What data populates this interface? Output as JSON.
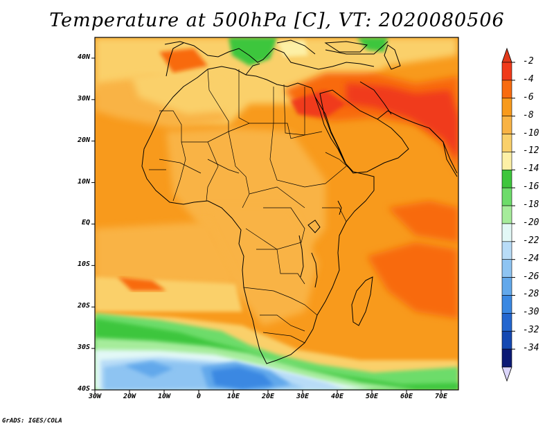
{
  "title": "Temperature at 500hPa [C], VT: 2020080506",
  "credit": "GrADS: IGES/COLA",
  "map": {
    "projection": "latlon",
    "lon_range": [
      -30,
      75
    ],
    "lat_range": [
      -40,
      45
    ],
    "lat_ticks": [
      {
        "value": 40,
        "label": "40N"
      },
      {
        "value": 30,
        "label": "30N"
      },
      {
        "value": 20,
        "label": "20N"
      },
      {
        "value": 10,
        "label": "10N"
      },
      {
        "value": 0,
        "label": "EQ"
      },
      {
        "value": -10,
        "label": "10S"
      },
      {
        "value": -20,
        "label": "20S"
      },
      {
        "value": -30,
        "label": "30S"
      },
      {
        "value": -40,
        "label": "40S"
      }
    ],
    "lon_ticks": [
      {
        "value": -30,
        "label": "30W"
      },
      {
        "value": -20,
        "label": "20W"
      },
      {
        "value": -10,
        "label": "10W"
      },
      {
        "value": 0,
        "label": "0"
      },
      {
        "value": 10,
        "label": "10E"
      },
      {
        "value": 20,
        "label": "20E"
      },
      {
        "value": 30,
        "label": "30E"
      },
      {
        "value": 40,
        "label": "40E"
      },
      {
        "value": 50,
        "label": "50E"
      },
      {
        "value": 60,
        "label": "60E"
      },
      {
        "value": 70,
        "label": "70E"
      }
    ]
  },
  "colorbar": {
    "bins": [
      {
        "color": "#f03a1a"
      },
      {
        "color": "#f86b0f"
      },
      {
        "color": "#f89a1c"
      },
      {
        "color": "#f9b344"
      },
      {
        "color": "#fad06a"
      },
      {
        "color": "#fdf0a6"
      },
      {
        "color": "#3ec63c"
      },
      {
        "color": "#6ddc6a"
      },
      {
        "color": "#a6ec9b"
      },
      {
        "color": "#e2f8f6"
      },
      {
        "color": "#b8dcf7"
      },
      {
        "color": "#8ec4f2"
      },
      {
        "color": "#62a8eb"
      },
      {
        "color": "#3a88e2"
      },
      {
        "color": "#2366cf"
      },
      {
        "color": "#1448b2"
      },
      {
        "color": "#0c1a74"
      }
    ],
    "top_triangle_color": "#e1391a",
    "bottom_triangle_color": "#dcd6fb",
    "labels": [
      "-2",
      "-4",
      "-6",
      "-8",
      "-10",
      "-12",
      "-14",
      "-16",
      "-18",
      "-20",
      "-22",
      "-24",
      "-26",
      "-28",
      "-30",
      "-32",
      "-34"
    ]
  }
}
